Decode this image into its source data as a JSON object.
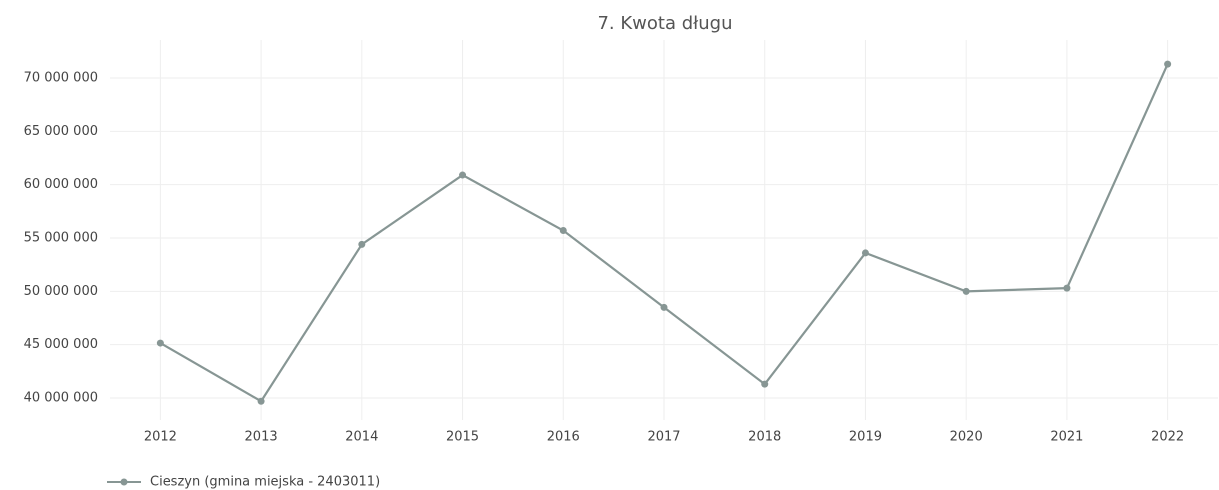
{
  "chart_data": {
    "type": "line",
    "title": "7. Kwota długu",
    "categories": [
      "2012",
      "2013",
      "2014",
      "2015",
      "2016",
      "2017",
      "2018",
      "2019",
      "2020",
      "2021",
      "2022"
    ],
    "series": [
      {
        "name": "Cieszyn (gmina miejska - 2403011)",
        "color": "#879694",
        "values": [
          45150000,
          39700000,
          54400000,
          60900000,
          55700000,
          48500000,
          41300000,
          53600000,
          50000000,
          50300000,
          71300000
        ]
      }
    ],
    "ylim": [
      37940000,
      73560000
    ],
    "yticks": [
      {
        "value": 40000000,
        "label": "40 000 000"
      },
      {
        "value": 45000000,
        "label": "45 000 000"
      },
      {
        "value": 50000000,
        "label": "50 000 000"
      },
      {
        "value": 55000000,
        "label": "55 000 000"
      },
      {
        "value": 60000000,
        "label": "60 000 000"
      },
      {
        "value": 65000000,
        "label": "65 000 000"
      },
      {
        "value": 70000000,
        "label": "70 000 000"
      }
    ],
    "grid": true,
    "legend": "bottom-left"
  }
}
